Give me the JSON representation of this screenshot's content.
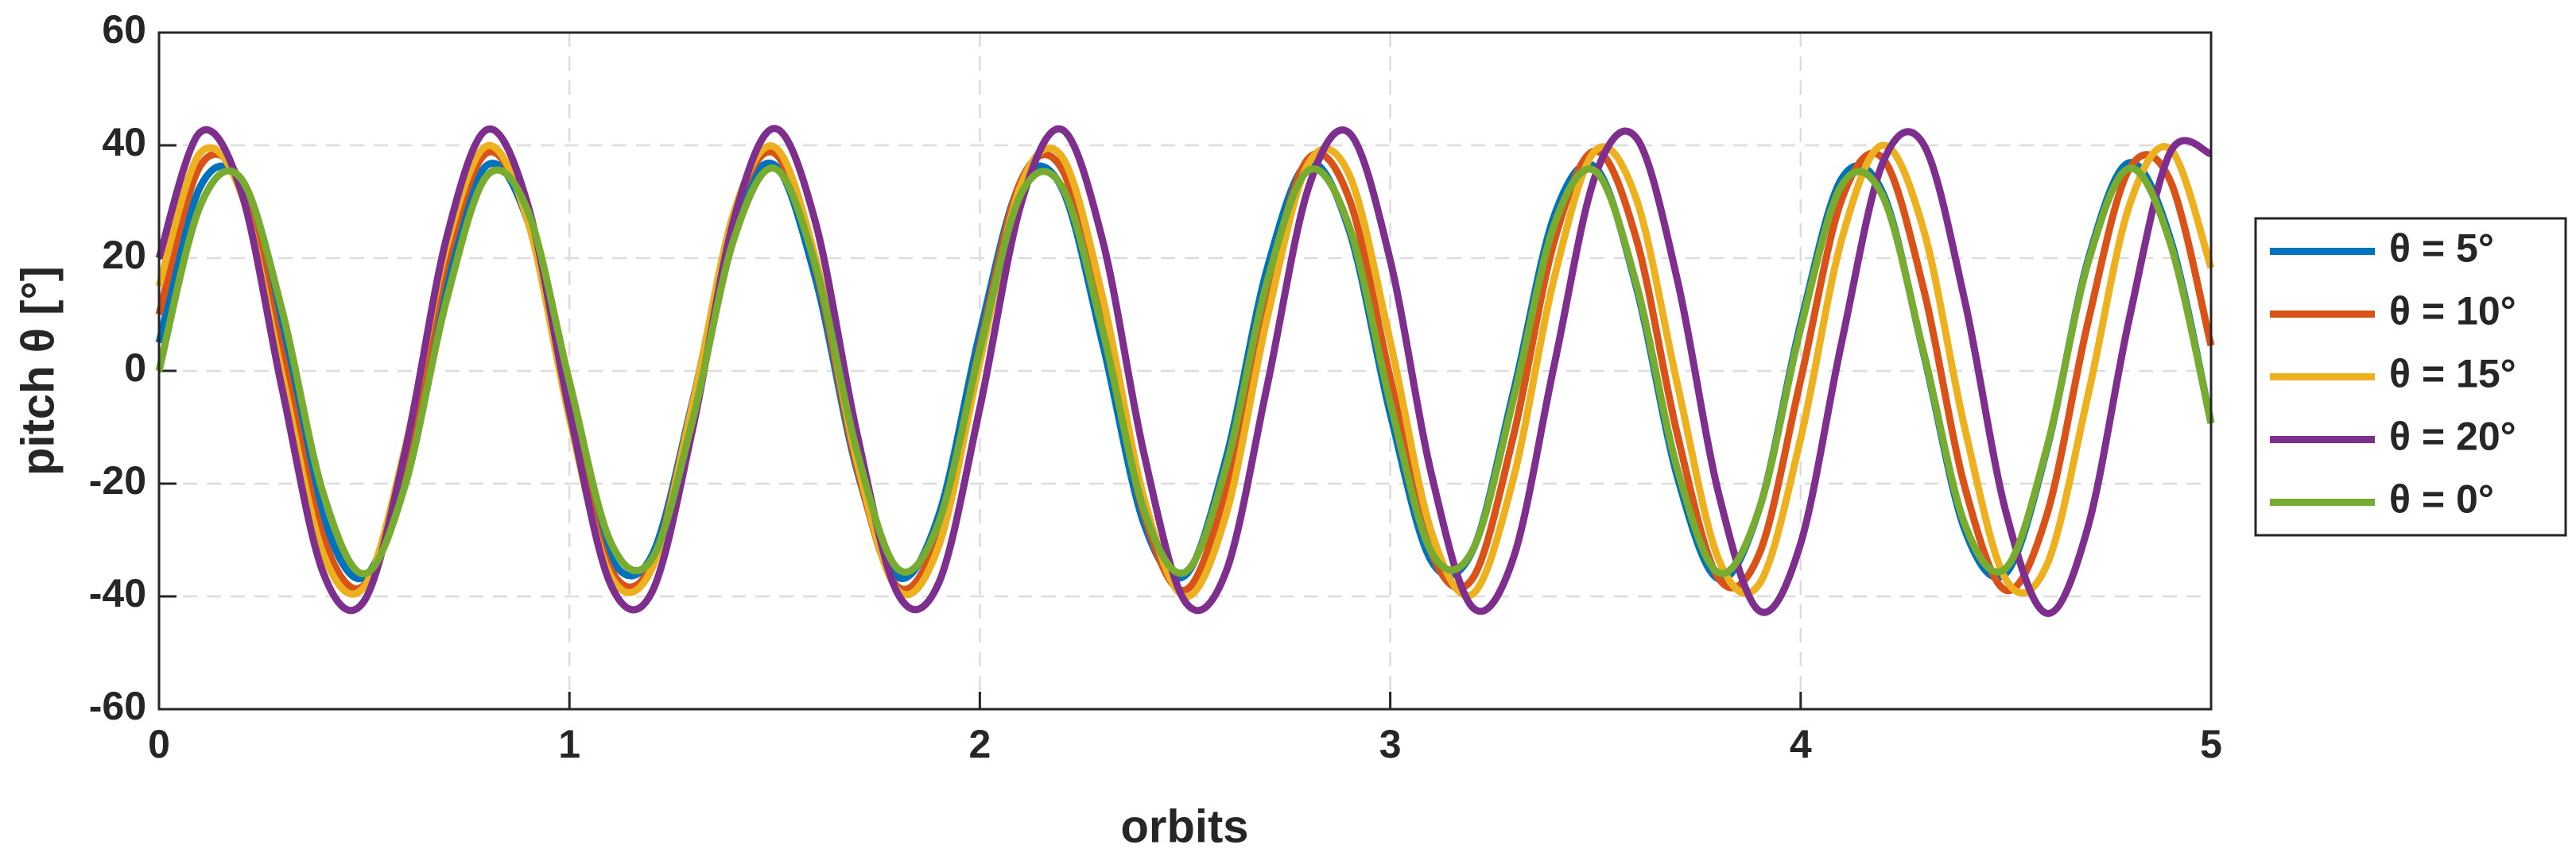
{
  "chart_data": {
    "type": "line",
    "xlabel": "orbits",
    "ylabel": "pitch θ [°]",
    "x": [
      0,
      0.1,
      0.2,
      0.3,
      0.4,
      0.5,
      0.6,
      0.7,
      0.8,
      0.9,
      1,
      1.1,
      1.2,
      1.3,
      1.4,
      1.5,
      1.6,
      1.7,
      1.8,
      1.9,
      2,
      2.1,
      2.2,
      2.3,
      2.4,
      2.5,
      2.6,
      2.7,
      2.8,
      2.9,
      3,
      3.1,
      3.2,
      3.3,
      3.4,
      3.5,
      3.6,
      3.7,
      3.8,
      3.9,
      4,
      4.1,
      4.2,
      4.3,
      4.4,
      4.5,
      4.6,
      4.7,
      4.8,
      4.9,
      5
    ],
    "series": [
      {
        "name": "θ = 5°",
        "color": "#0072bd",
        "values": [
          5.0,
          32.6,
          33.2,
          6.3,
          -25.9,
          -36.6,
          -17.1,
          16.6,
          36.5,
          26.2,
          -5.8,
          -33.0,
          -32.9,
          -5.5,
          26.4,
          36.5,
          16.3,
          -17.4,
          -36.6,
          -25.6,
          6.7,
          33.4,
          32.4,
          4.6,
          -27.1,
          -36.3,
          -15.5,
          18.1,
          36.8,
          24.9,
          -7.6,
          -33.7,
          -32.0,
          -3.8,
          27.6,
          36.1,
          14.7,
          -18.9,
          -36.9,
          -24.3,
          8.4,
          34.1,
          31.6,
          2.9,
          -28.2,
          -35.9,
          -13.9,
          19.6,
          36.9,
          23.6,
          -9.2
        ]
      },
      {
        "name": "θ = 10°",
        "color": "#d95319",
        "values": [
          10.0,
          36.3,
          33.1,
          3.0,
          -29.5,
          -38.0,
          -15.7,
          19.4,
          38.7,
          26.6,
          -7.1,
          -35.1,
          -34.5,
          -5.9,
          27.5,
          38.6,
          18.3,
          -16.8,
          -38.3,
          -28.7,
          4.3,
          33.7,
          35.8,
          8.8,
          -25.4,
          -38.9,
          -20.8,
          14.1,
          37.6,
          30.5,
          -1.3,
          -32.2,
          -36.9,
          -11.6,
          23.1,
          39.0,
          23.3,
          -11.4,
          -36.8,
          -32.3,
          -1.6,
          30.4,
          37.7,
          14.4,
          -20.6,
          -38.9,
          -25.5,
          8.6,
          35.7,
          33.8,
          4.5
        ]
      },
      {
        "name": "θ = 15°",
        "color": "#edb120",
        "values": [
          15.0,
          38.6,
          31.5,
          -0.7,
          -32.4,
          -38.3,
          -13.6,
          21.8,
          39.9,
          26.2,
          -8.4,
          -36.3,
          -35.2,
          -6.1,
          27.9,
          39.7,
          19.8,
          -15.8,
          -38.9,
          -31.0,
          1.6,
          32.9,
          38.0,
          12.8,
          -22.6,
          -40.0,
          -25.5,
          9.3,
          36.7,
          34.8,
          5.2,
          -28.5,
          -39.6,
          -19.1,
          16.6,
          39.1,
          30.4,
          -2.5,
          -33.4,
          -37.7,
          -12.0,
          23.3,
          40.0,
          24.9,
          -10.2,
          -37.0,
          -34.4,
          -4.4,
          29.1,
          39.4,
          18.3
        ]
      },
      {
        "name": "θ = 20°",
        "color": "#7e2f8e",
        "values": [
          20.0,
          42.3,
          31.9,
          -3.2,
          -35.8,
          -40.8,
          -14.2,
          23.4,
          42.8,
          29.1,
          -7.1,
          -37.8,
          -39.4,
          -10.4,
          26.6,
          43.0,
          26.2,
          -10.9,
          -39.5,
          -37.6,
          -6.6,
          29.5,
          42.8,
          22.9,
          -14.7,
          -40.9,
          -35.6,
          -2.7,
          32.3,
          42.2,
          19.6,
          -18.2,
          -41.9,
          -33.2,
          1.2,
          34.7,
          41.3,
          16.0,
          -21.7,
          -42.6,
          -30.6,
          5.1,
          36.9,
          40.1,
          12.4,
          -25.0,
          -43.0,
          -27.7,
          9.0,
          38.7,
          38.5
        ]
      },
      {
        "name": "θ = 0°",
        "color": "#77ac30",
        "values": [
          0,
          29.2,
          34.1,
          10.7,
          -21.7,
          -36.0,
          -20.2,
          12.4,
          34.7,
          28.1,
          -1.9,
          -30.3,
          -33.5,
          -8.8,
          23.2,
          35.9,
          18.6,
          -14.1,
          -35.1,
          -26.9,
          3.7,
          31.3,
          32.7,
          7.0,
          -24.7,
          -35.7,
          -17.0,
          15.8,
          35.5,
          25.6,
          -5.6,
          -32.1,
          -31.9,
          -5.1,
          26.0,
          35.4,
          15.3,
          -17.5,
          -35.8,
          -24.3,
          7.5,
          32.9,
          31.0,
          3.2,
          -27.2,
          -35.0,
          -13.6,
          19.1,
          35.9,
          22.8,
          -9.3
        ]
      }
    ],
    "xlim": [
      0,
      5
    ],
    "xticks": [
      0,
      1,
      2,
      3,
      4,
      5
    ],
    "ylim": [
      -60,
      60
    ],
    "yticks": [
      -60,
      -40,
      -20,
      0,
      20,
      40,
      60
    ],
    "grid": true,
    "legend": "east-outside"
  }
}
